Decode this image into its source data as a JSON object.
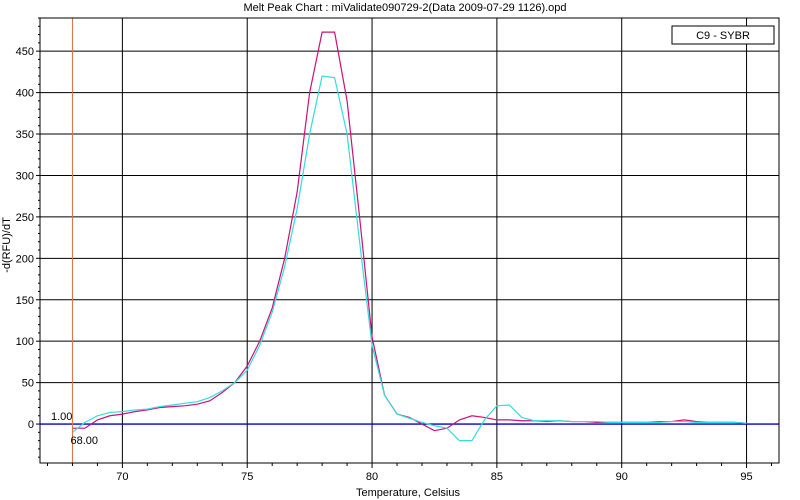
{
  "chart_data": {
    "type": "line",
    "title": "Melt Peak Chart : miValidate090729-2(Data 2009-07-29 1126).opd",
    "xlabel": "Temperature, Celsius",
    "ylabel": "-d(RFU)/dT",
    "xlim": [
      66.7,
      96.3
    ],
    "ylim": [
      -47,
      490
    ],
    "xticks": [
      70,
      75,
      80,
      85,
      90,
      95
    ],
    "yticks": [
      0,
      50,
      100,
      150,
      200,
      250,
      300,
      350,
      400,
      450
    ],
    "grid": true,
    "legend": {
      "label": "C9 - SYBR",
      "position": "top-right"
    },
    "cursor": {
      "x": 68.0,
      "x_label": "68.00",
      "y_label": "1.00",
      "color": "#e07040"
    },
    "threshold": {
      "y": 0,
      "color": "#0000cc"
    },
    "series": [
      {
        "color": "#cc1177",
        "x": [
          68.0,
          68.5,
          69.0,
          69.5,
          70.0,
          70.5,
          71.0,
          71.5,
          72.0,
          72.5,
          73.0,
          73.5,
          74.0,
          74.5,
          75.0,
          75.5,
          76.0,
          76.5,
          77.0,
          77.5,
          78.0,
          78.5,
          79.0,
          79.5,
          80.0,
          80.5,
          81.0,
          81.5,
          82.0,
          82.5,
          83.0,
          83.5,
          84.0,
          84.5,
          85.0,
          85.5,
          86.0,
          86.5,
          87.0,
          87.5,
          88.0,
          88.5,
          89.0,
          89.5,
          90.0,
          90.5,
          91.0,
          91.5,
          92.0,
          92.5,
          93.0,
          93.5,
          94.0,
          94.5,
          95.0
        ],
        "y": [
          -5,
          -5,
          5,
          10,
          12,
          15,
          17,
          20,
          21,
          22,
          24,
          28,
          38,
          50,
          70,
          100,
          140,
          200,
          280,
          400,
          473,
          473,
          390,
          250,
          105,
          35,
          12,
          8,
          0,
          -8,
          -5,
          5,
          10,
          8,
          5,
          5,
          4,
          4,
          3,
          4,
          3,
          3,
          2,
          2,
          2,
          2,
          2,
          3,
          3,
          5,
          3,
          2,
          2,
          2,
          1
        ]
      },
      {
        "color": "#33dddd",
        "x": [
          68.0,
          68.5,
          69.0,
          69.5,
          70.0,
          70.5,
          71.0,
          71.5,
          72.0,
          72.5,
          73.0,
          73.5,
          74.0,
          74.5,
          75.0,
          75.5,
          76.0,
          76.5,
          77.0,
          77.5,
          78.0,
          78.5,
          79.0,
          79.5,
          80.0,
          80.5,
          81.0,
          81.5,
          82.0,
          82.5,
          83.0,
          83.5,
          84.0,
          84.5,
          85.0,
          85.5,
          86.0,
          86.5,
          87.0,
          87.5,
          88.0,
          88.5,
          89.0,
          89.5,
          90.0,
          90.5,
          91.0,
          91.5,
          92.0,
          92.5,
          93.0,
          93.5,
          94.0,
          94.5,
          95.0
        ],
        "y": [
          -10,
          2,
          10,
          14,
          15,
          17,
          18,
          21,
          23,
          25,
          27,
          32,
          40,
          50,
          65,
          95,
          135,
          190,
          260,
          350,
          420,
          418,
          350,
          220,
          95,
          35,
          12,
          7,
          2,
          -2,
          -5,
          -20,
          -20,
          5,
          22,
          23,
          8,
          4,
          4,
          4,
          3,
          3,
          3,
          2,
          2,
          2,
          2,
          2,
          3,
          3,
          2,
          2,
          2,
          2,
          1
        ]
      }
    ]
  }
}
